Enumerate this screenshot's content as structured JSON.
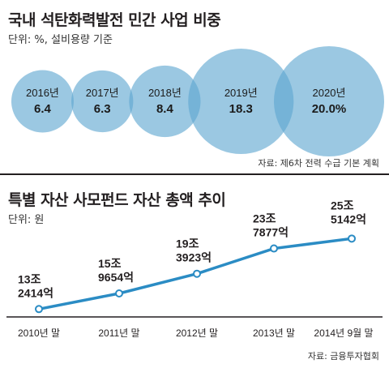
{
  "chart_data": [
    {
      "type": "bubble",
      "title": "국내 석탄화력발전 민간 사업 비중",
      "unit": "단위: %, 설비용량 기준",
      "source": "자료: 제6차 전력 수급 기본 계획",
      "categories": [
        "2016년",
        "2017년",
        "2018년",
        "2019년",
        "2020년"
      ],
      "values": [
        6.4,
        6.3,
        8.4,
        18.3,
        20.0
      ],
      "value_labels": [
        "6.4",
        "6.3",
        "8.4",
        "18.3",
        "20.0%"
      ],
      "colors": {
        "bubble": "#5ea6d1"
      }
    },
    {
      "type": "line",
      "title": "특별 자산 사모펀드 자산 총액 추이",
      "unit": "단위: 원",
      "source": "자료: 금융투자협회",
      "categories": [
        "2010년 말",
        "2011년 말",
        "2012년 말",
        "2013년 말",
        "2014년 9월 말"
      ],
      "values": [
        132414,
        159654,
        193923,
        237877,
        255142
      ],
      "value_labels": [
        [
          "13조",
          "2414억"
        ],
        [
          "15조",
          "9654억"
        ],
        [
          "19조",
          "3923억"
        ],
        [
          "23조",
          "7877억"
        ],
        [
          "25조",
          "5142억"
        ]
      ],
      "colors": {
        "line": "#2b8cc4",
        "marker_fill": "#ffffff"
      }
    }
  ]
}
